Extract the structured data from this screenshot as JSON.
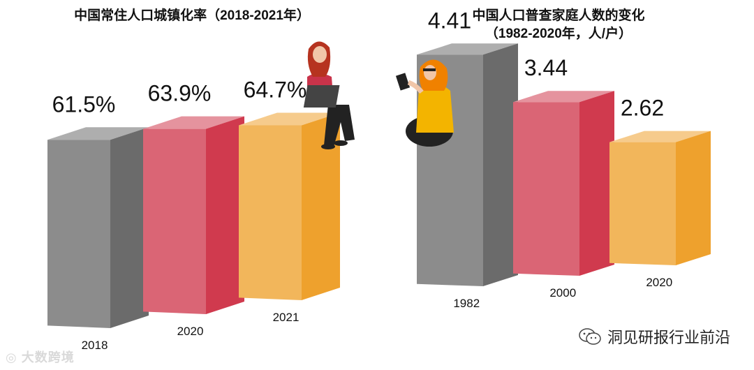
{
  "chart_data": [
    {
      "type": "bar",
      "title": "中国常住人口城镇化率（2018-2021年）",
      "categories": [
        "2018",
        "2020",
        "2021"
      ],
      "values": [
        61.5,
        63.9,
        64.7
      ],
      "value_labels": [
        "61.5%",
        "63.9%",
        "64.7%"
      ],
      "colors": [
        "#6b6b6b",
        "#d03a4e",
        "#eea12d"
      ],
      "unit": "%"
    },
    {
      "type": "bar",
      "title": "中国人口普查家庭人数的变化",
      "subtitle": "（1982-2020年，人/户）",
      "categories": [
        "1982",
        "2000",
        "2020"
      ],
      "values": [
        4.41,
        3.44,
        2.62
      ],
      "value_labels": [
        "4.41",
        "3.44",
        "2.62"
      ],
      "colors": [
        "#6b6b6b",
        "#d03a4e",
        "#eea12d"
      ]
    }
  ],
  "watermarks": {
    "left": "大数跨境",
    "right": "洞见研报行业前沿"
  }
}
